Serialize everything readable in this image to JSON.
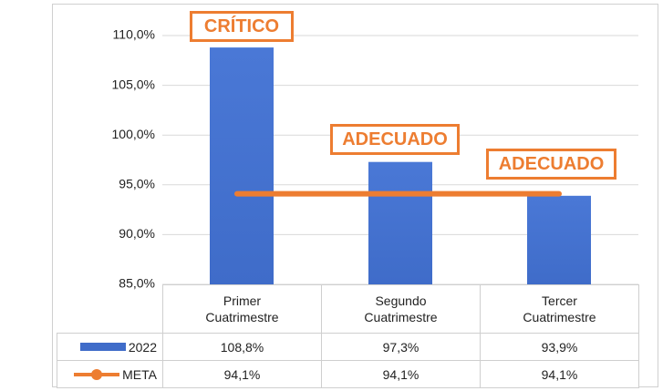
{
  "chart_data": {
    "type": "bar",
    "categories": [
      "Primer Cuatrimestre",
      "Segundo Cuatrimestre",
      "Tercer Cuatrimestre"
    ],
    "series": [
      {
        "name": "2022",
        "type": "bar",
        "color": "#3f6cc9",
        "values": [
          108.8,
          97.3,
          93.9
        ],
        "value_labels": [
          "108,8%",
          "97,3%",
          "93,9%"
        ]
      },
      {
        "name": "META",
        "type": "line",
        "color": "#ed7d31",
        "values": [
          94.1,
          94.1,
          94.1
        ],
        "value_labels": [
          "94,1%",
          "94,1%",
          "94,1%"
        ]
      }
    ],
    "ylim": [
      85,
      110
    ],
    "yticks": [
      {
        "value": 85,
        "label": "85,0%"
      },
      {
        "value": 90,
        "label": "90,0%"
      },
      {
        "value": 95,
        "label": "95,0%"
      },
      {
        "value": 100,
        "label": "100,0%"
      },
      {
        "value": 105,
        "label": "105,0%"
      },
      {
        "value": 110,
        "label": "110,0%"
      }
    ],
    "grid": true,
    "annotations": [
      "CRÍTICO",
      "ADECUADO",
      "ADECUADO"
    ]
  }
}
